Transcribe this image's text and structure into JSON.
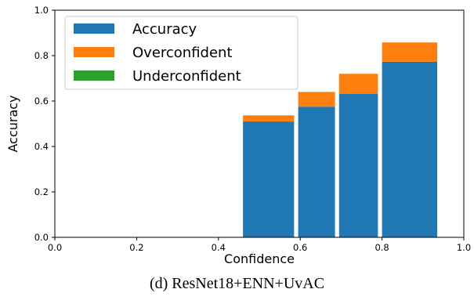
{
  "chart_data": {
    "type": "bar",
    "stacked": true,
    "xlabel": "Confidence",
    "ylabel": "Accuracy",
    "xlim": [
      0.0,
      1.0
    ],
    "ylim": [
      0.0,
      1.0
    ],
    "xticks": [
      "0.0",
      "0.2",
      "0.4",
      "0.6",
      "0.8",
      "1.0"
    ],
    "yticks": [
      "0.0",
      "0.2",
      "0.4",
      "0.6",
      "0.8",
      "1.0"
    ],
    "grid": false,
    "legend_position": "top-left",
    "bins": [
      {
        "x0": 0.46,
        "x1": 0.585,
        "accuracy": 0.51,
        "overconfident": 0.027,
        "underconfident": 0.0
      },
      {
        "x0": 0.595,
        "x1": 0.685,
        "accuracy": 0.575,
        "overconfident": 0.065,
        "underconfident": 0.0
      },
      {
        "x0": 0.695,
        "x1": 0.79,
        "accuracy": 0.632,
        "overconfident": 0.088,
        "underconfident": 0.0
      },
      {
        "x0": 0.8,
        "x1": 0.935,
        "accuracy": 0.773,
        "overconfident": 0.085,
        "underconfident": 0.0
      }
    ],
    "series": [
      {
        "name": "Accuracy",
        "color": "#1f77b4"
      },
      {
        "name": "Overconfident",
        "color": "#ff7f0e"
      },
      {
        "name": "Underconfident",
        "color": "#2ca02c"
      }
    ]
  },
  "caption": "(d) ResNet18+ENN+UvAC"
}
